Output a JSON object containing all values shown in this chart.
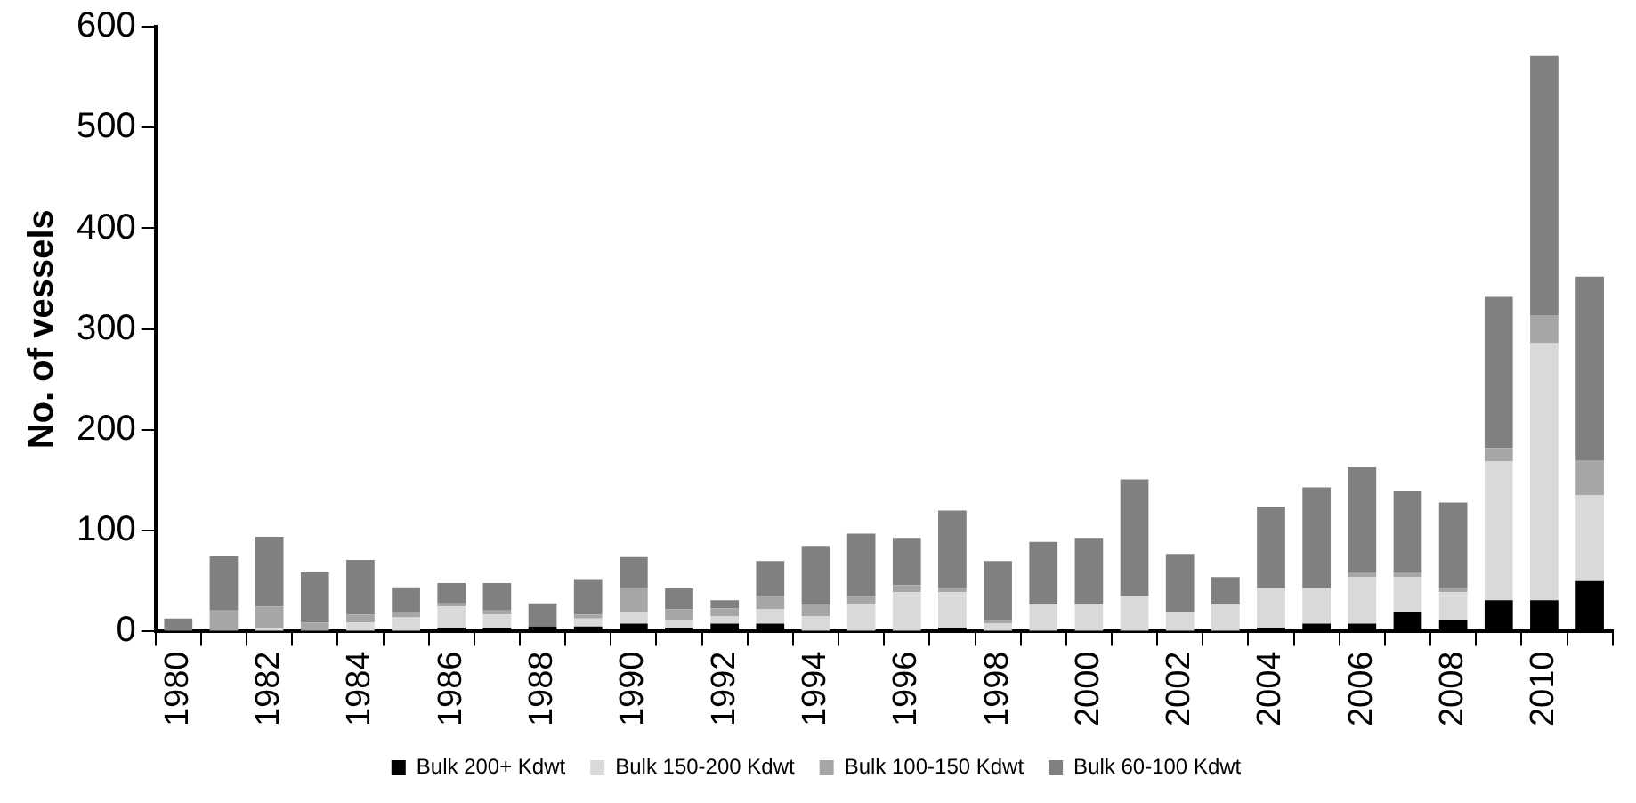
{
  "chart_data": {
    "type": "bar",
    "stacked": true,
    "ylabel": "No. of vessels",
    "categories": [
      "1980",
      null,
      "1982",
      null,
      "1984",
      null,
      "1986",
      null,
      "1988",
      null,
      "1990",
      null,
      "1992",
      null,
      "1994",
      null,
      "1996",
      null,
      "1998",
      null,
      "2000",
      null,
      "2002",
      null,
      "2004",
      null,
      "2006",
      null,
      "2008",
      null,
      "2010",
      null
    ],
    "series": [
      {
        "name": "Bulk 200+ Kdwt",
        "color": "#000000",
        "values": [
          0,
          0,
          0,
          0,
          0,
          0,
          4,
          4,
          5,
          5,
          8,
          4,
          8,
          8,
          0,
          0,
          0,
          4,
          0,
          0,
          0,
          0,
          0,
          0,
          4,
          8,
          8,
          19,
          12,
          31,
          31,
          50
        ]
      },
      {
        "name": "Bulk 150-200 Kdwt",
        "color": "#d9d9d9",
        "values": [
          0,
          null,
          4,
          null,
          9,
          14,
          21,
          13,
          null,
          8,
          11,
          8,
          7,
          14,
          15,
          27,
          39,
          35,
          8,
          27,
          27,
          35,
          19,
          27,
          39,
          35,
          46,
          35,
          27,
          138,
          255,
          85
        ]
      },
      {
        "name": "Bulk 100-150 Kdwt",
        "color": "#a6a6a6",
        "values": [
          0,
          21,
          21,
          9,
          8,
          5,
          3,
          4,
          null,
          4,
          24,
          10,
          8,
          13,
          12,
          8,
          7,
          4,
          4,
          0,
          0,
          0,
          0,
          0,
          0,
          0,
          4,
          4,
          4,
          13,
          28,
          35
        ]
      },
      {
        "name": "Bulk 60-100 Kdwt",
        "color": "#808080",
        "values": [
          13,
          54,
          69,
          50,
          54,
          25,
          20,
          27,
          23,
          35,
          31,
          21,
          8,
          35,
          58,
          62,
          47,
          77,
          58,
          62,
          66,
          116,
          58,
          27,
          81,
          100,
          105,
          81,
          85,
          150,
          257,
          182
        ]
      }
    ],
    "ylim": [
      0,
      600
    ],
    "yticks": [
      0,
      100,
      200,
      300,
      400,
      500,
      600
    ],
    "grid": false,
    "legend": "bottom"
  }
}
